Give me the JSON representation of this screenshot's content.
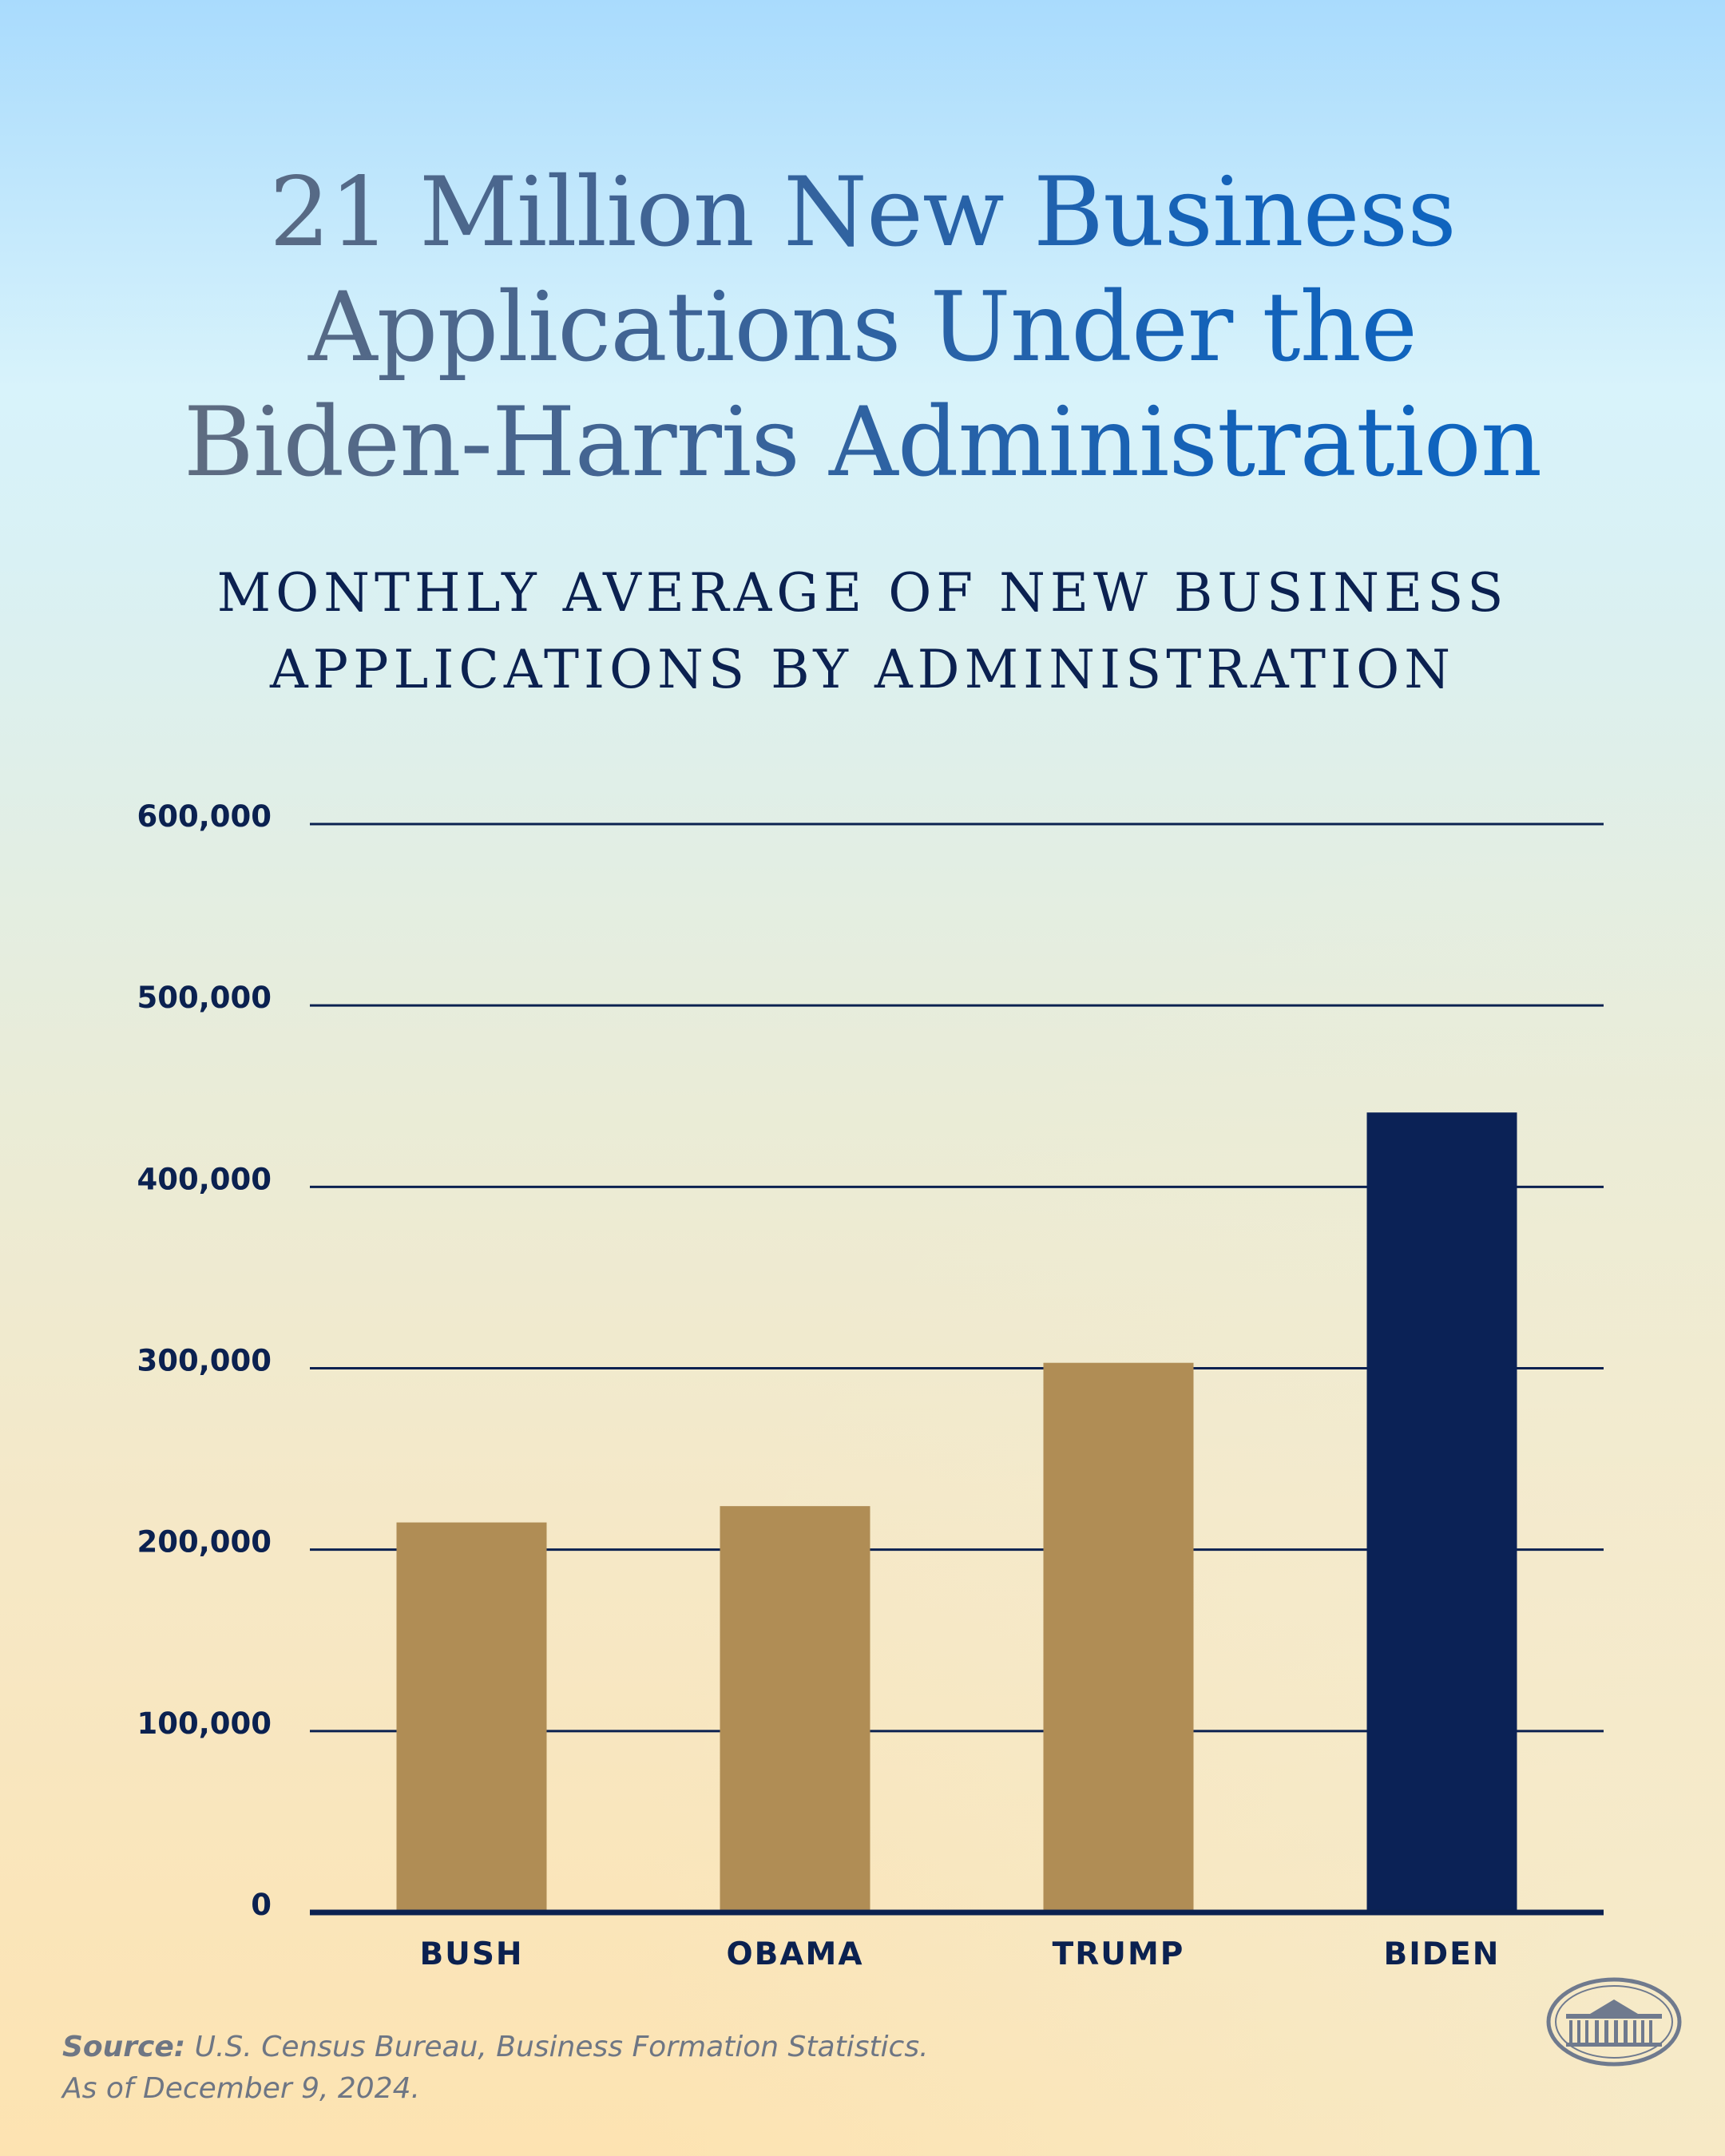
{
  "header": {
    "title_lines": [
      "21 Million New Business",
      "Applications Under the",
      "Biden-Harris Administration"
    ],
    "subtitle_lines": [
      "MONTHLY AVERAGE OF NEW BUSINESS",
      "APPLICATIONS BY ADMINISTRATION"
    ]
  },
  "chart_data": {
    "type": "bar",
    "title": "Monthly Average of New Business Applications by Administration",
    "categories": [
      "BUSH",
      "OBAMA",
      "TRUMP",
      "BIDEN"
    ],
    "values": [
      215000,
      224000,
      303000,
      441000
    ],
    "ylim": [
      0,
      600000
    ],
    "yticks": [
      0,
      100000,
      200000,
      300000,
      400000,
      500000,
      600000
    ],
    "ytick_labels": [
      "0",
      "100,000",
      "200,000",
      "300,000",
      "400,000",
      "500,000",
      "600,000"
    ],
    "grid": true,
    "xlabel": "",
    "ylabel": ""
  },
  "colors": {
    "gold_bar": "#b08d55",
    "highlight_bar": "#0b2256",
    "grid_line": "#0b2150"
  },
  "source": {
    "label": "Source:",
    "text": "U.S. Census Bureau, Business Formation Statistics.",
    "date": "As of December 9, 2024."
  },
  "seal": {
    "icon": "white-house-seal-icon"
  }
}
